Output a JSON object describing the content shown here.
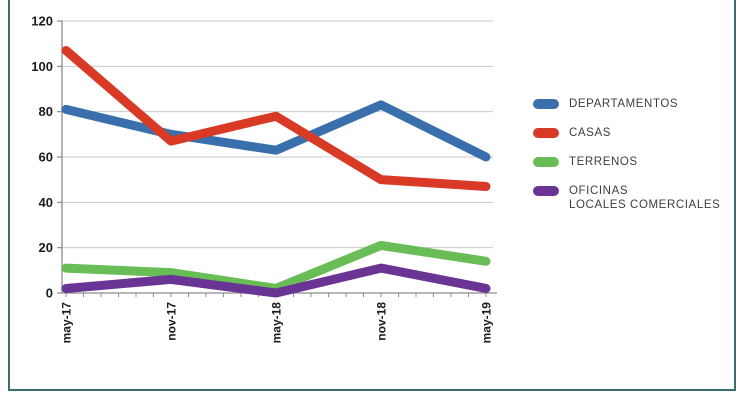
{
  "page": {
    "background": "#ffffff",
    "frame_color": "#3a6e71"
  },
  "chart_data": {
    "type": "line",
    "title": "",
    "xlabel": "",
    "ylabel": "",
    "categories": [
      "may-17",
      "nov-17",
      "may-18",
      "nov-18",
      "may-19"
    ],
    "series": [
      {
        "name": "DEPARTAMENTOS",
        "color": "#3a6fad",
        "values": [
          81,
          70,
          63,
          83,
          60
        ],
        "legend_lines": [
          "DEPARTAMENTOS"
        ]
      },
      {
        "name": "CASAS",
        "color": "#d93a26",
        "values": [
          107,
          67,
          78,
          50,
          47
        ],
        "legend_lines": [
          "CASAS"
        ]
      },
      {
        "name": "TERRENOS",
        "color": "#69bd57",
        "values": [
          11,
          9,
          2,
          21,
          14
        ],
        "legend_lines": [
          "TERRENOS"
        ]
      },
      {
        "name": "OFICINAS LOCALES COMERCIALES",
        "color": "#6a3494",
        "values": [
          2,
          6,
          0,
          11,
          2
        ],
        "legend_lines": [
          "OFICINAS",
          "LOCALES COMERCIALES"
        ]
      }
    ],
    "ylim": [
      0,
      120
    ],
    "y_ticks": [
      0,
      20,
      40,
      60,
      80,
      100,
      120
    ],
    "x_minor_ticks_per_interval": 6,
    "grid": true,
    "legend_position": "right",
    "grid_color": "#c9c9c9",
    "axis_color": "#8c8c8c",
    "tick_label_color": "#1c1c1c",
    "legend_text_color": "#3d3d3d"
  }
}
